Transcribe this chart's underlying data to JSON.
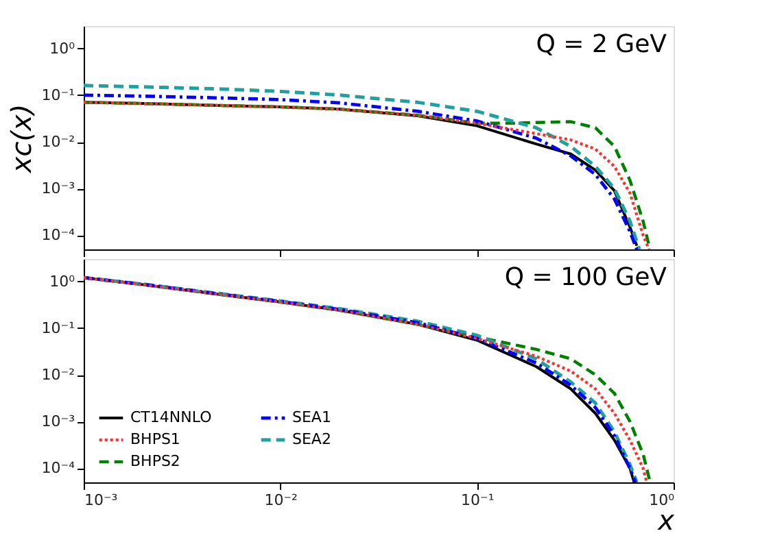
{
  "chart_data": [
    {
      "type": "line",
      "ylabel": "xc(x)",
      "annotations": [
        "Q = 2 GeV"
      ],
      "log": "xy",
      "grid": false,
      "tick_labels": "y",
      "xlim": [
        0.001,
        1
      ],
      "xticks": [
        {
          "value": 0.001,
          "label": null
        },
        {
          "value": 0.01,
          "label": null
        },
        {
          "value": 0.1,
          "label": null
        },
        {
          "value": 1,
          "label": null
        }
      ],
      "ylim": [
        5e-05,
        3
      ],
      "yticks": [
        {
          "value": 1,
          "label": "10⁰"
        },
        {
          "value": 0.1,
          "label": "10⁻¹"
        },
        {
          "value": 0.01,
          "label": "10⁻²"
        },
        {
          "value": 0.001,
          "label": "10⁻³"
        },
        {
          "value": 0.0001,
          "label": "10⁻⁴"
        }
      ],
      "series": [
        {
          "color": "#000000",
          "line_style": "solid",
          "x": [
            0.001,
            0.002,
            0.005,
            0.01,
            0.02,
            0.05,
            0.1,
            0.2,
            0.3,
            0.4,
            0.5,
            0.6,
            0.65
          ],
          "values": [
            0.07,
            0.066,
            0.06,
            0.056,
            0.05,
            0.036,
            0.022,
            0.009,
            0.0055,
            0.0025,
            0.0009,
            0.00015,
            6e-05
          ]
        },
        {
          "color": "#ff3030",
          "line_style": "dotted",
          "x": [
            0.001,
            0.002,
            0.005,
            0.01,
            0.02,
            0.05,
            0.1,
            0.2,
            0.3,
            0.4,
            0.5,
            0.6,
            0.7,
            0.75
          ],
          "values": [
            0.07,
            0.066,
            0.06,
            0.056,
            0.05,
            0.037,
            0.025,
            0.015,
            0.011,
            0.007,
            0.003,
            0.0008,
            0.0001,
            5e-05
          ]
        },
        {
          "color": "#008000",
          "line_style": "dashed",
          "x": [
            0.001,
            0.002,
            0.005,
            0.01,
            0.02,
            0.05,
            0.1,
            0.15,
            0.2,
            0.3,
            0.4,
            0.5,
            0.6,
            0.7,
            0.75
          ],
          "values": [
            0.07,
            0.066,
            0.06,
            0.056,
            0.05,
            0.037,
            0.025,
            0.025,
            0.026,
            0.027,
            0.02,
            0.008,
            0.0015,
            0.0002,
            6e-05
          ]
        },
        {
          "color": "#0000ff",
          "line_style": "dashdot",
          "x": [
            0.001,
            0.002,
            0.005,
            0.01,
            0.02,
            0.05,
            0.1,
            0.2,
            0.3,
            0.4,
            0.5,
            0.6,
            0.65
          ],
          "values": [
            0.1,
            0.095,
            0.087,
            0.08,
            0.068,
            0.045,
            0.028,
            0.012,
            0.005,
            0.002,
            0.0006,
            0.00012,
            5e-05
          ]
        },
        {
          "color": "#20a0a0",
          "line_style": "dashed",
          "x": [
            0.001,
            0.002,
            0.005,
            0.01,
            0.02,
            0.05,
            0.1,
            0.2,
            0.3,
            0.4,
            0.5,
            0.6,
            0.67
          ],
          "values": [
            0.16,
            0.15,
            0.135,
            0.12,
            0.1,
            0.07,
            0.045,
            0.02,
            0.008,
            0.003,
            0.001,
            0.0002,
            5e-05
          ]
        }
      ]
    },
    {
      "type": "line",
      "xlabel": "x",
      "annotations": [
        "Q = 100 GeV"
      ],
      "log": "xy",
      "grid": false,
      "legend": "bottom left",
      "xlim": [
        0.001,
        1
      ],
      "xticks": [
        {
          "value": 0.001,
          "label": "10⁻³"
        },
        {
          "value": 0.01,
          "label": "10⁻²"
        },
        {
          "value": 0.1,
          "label": "10⁻¹"
        },
        {
          "value": 1,
          "label": "10⁰"
        }
      ],
      "ylim": [
        5e-05,
        3
      ],
      "yticks": [
        {
          "value": 1,
          "label": "10⁰"
        },
        {
          "value": 0.1,
          "label": "10⁻¹"
        },
        {
          "value": 0.01,
          "label": "10⁻²"
        },
        {
          "value": 0.001,
          "label": "10⁻³"
        },
        {
          "value": 0.0001,
          "label": "10⁻⁴"
        }
      ],
      "series": [
        {
          "name": "CT14NNLO",
          "color": "#000000",
          "line_style": "solid",
          "x": [
            0.001,
            0.002,
            0.005,
            0.01,
            0.02,
            0.05,
            0.1,
            0.2,
            0.3,
            0.4,
            0.5,
            0.6,
            0.63
          ],
          "values": [
            1.2,
            0.85,
            0.52,
            0.36,
            0.24,
            0.12,
            0.055,
            0.015,
            0.005,
            0.0015,
            0.0004,
            0.0001,
            5e-05
          ]
        },
        {
          "name": "BHPS1",
          "color": "#ff3030",
          "line_style": "dotted",
          "x": [
            0.001,
            0.002,
            0.005,
            0.01,
            0.02,
            0.05,
            0.1,
            0.2,
            0.3,
            0.4,
            0.5,
            0.6,
            0.7,
            0.73
          ],
          "values": [
            1.2,
            0.85,
            0.52,
            0.36,
            0.24,
            0.12,
            0.06,
            0.025,
            0.012,
            0.005,
            0.0015,
            0.0004,
            0.0001,
            5e-05
          ]
        },
        {
          "name": "BHPS2",
          "color": "#008000",
          "line_style": "dashed",
          "x": [
            0.001,
            0.002,
            0.005,
            0.01,
            0.02,
            0.05,
            0.1,
            0.2,
            0.3,
            0.4,
            0.5,
            0.6,
            0.7,
            0.76
          ],
          "values": [
            1.2,
            0.85,
            0.52,
            0.36,
            0.24,
            0.12,
            0.065,
            0.035,
            0.022,
            0.01,
            0.004,
            0.001,
            0.0002,
            5e-05
          ]
        },
        {
          "name": "SEA1",
          "color": "#0000ff",
          "line_style": "dashdot",
          "x": [
            0.001,
            0.002,
            0.005,
            0.01,
            0.02,
            0.05,
            0.1,
            0.2,
            0.3,
            0.4,
            0.5,
            0.6,
            0.64
          ],
          "values": [
            1.2,
            0.86,
            0.53,
            0.37,
            0.25,
            0.13,
            0.06,
            0.018,
            0.006,
            0.002,
            0.0005,
            0.0001,
            5e-05
          ]
        },
        {
          "name": "SEA2",
          "color": "#20a0a0",
          "line_style": "dashed",
          "x": [
            0.001,
            0.002,
            0.005,
            0.01,
            0.02,
            0.05,
            0.1,
            0.2,
            0.3,
            0.4,
            0.5,
            0.6,
            0.65
          ],
          "values": [
            1.2,
            0.87,
            0.54,
            0.38,
            0.26,
            0.14,
            0.07,
            0.022,
            0.007,
            0.0025,
            0.0006,
            0.00012,
            5e-05
          ]
        }
      ]
    }
  ]
}
